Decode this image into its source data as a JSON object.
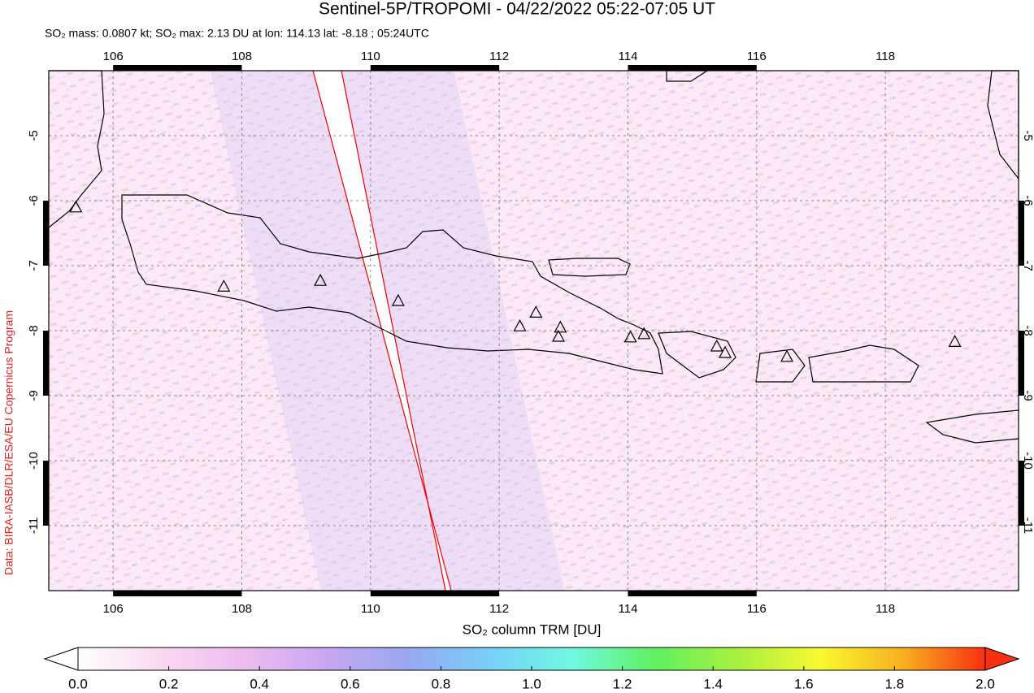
{
  "header": {
    "title": "Sentinel-5P/TROPOMI - 04/22/2022 05:22-07:05 UT",
    "subtitle": "SO₂ mass: 0.0807 kt; SO₂ max: 2.13 DU at lon: 114.13 lat: -8.18 ; 05:24UTC"
  },
  "credit": "Data: BIRA-IASB/DLR/ESA/EU Copernicus Program",
  "map": {
    "xlim": [
      105,
      120.07
    ],
    "ylim": [
      -12,
      -4
    ],
    "xticks": [
      106,
      108,
      110,
      112,
      114,
      116,
      118
    ],
    "yticks": [
      -5,
      -6,
      -7,
      -8,
      -9,
      -10,
      -11
    ],
    "volcano_lon": [
      107.72,
      109.22,
      110.43,
      112.32,
      112.57,
      112.95,
      112.92,
      114.04,
      114.25,
      115.38,
      115.51,
      116.47,
      119.08,
      105.42
    ],
    "volcano_lat": [
      -7.33,
      -7.24,
      -7.55,
      -7.94,
      -7.73,
      -7.96,
      -8.1,
      -8.11,
      -8.06,
      -8.25,
      -8.35,
      -8.41,
      -8.18,
      -6.11
    ]
  },
  "colorbar": {
    "label": "SO₂ column TRM [DU]",
    "lim": [
      0,
      2
    ],
    "ticks": [
      {
        "value": 0,
        "label": "0.0"
      },
      0.2,
      0.4,
      0.6,
      0.8,
      {
        "value": 1,
        "label": "1.0"
      },
      1.2,
      1.4,
      1.6,
      1.8,
      {
        "value": 2,
        "label": "2.0"
      }
    ],
    "colors": [
      "#ffffff",
      "#f9d8f0",
      "#eebcf0",
      "#c8a8f0",
      "#98a8f0",
      "#78d0f8",
      "#70f8e0",
      "#60f060",
      "#a8f040",
      "#f8f830",
      "#f8b020",
      "#f83010"
    ]
  }
}
